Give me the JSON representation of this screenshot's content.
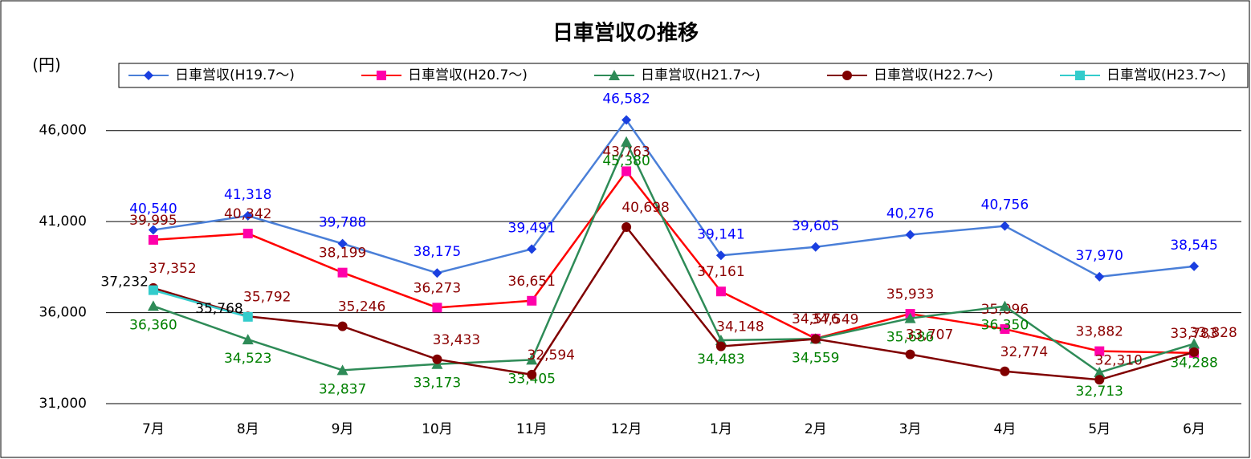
{
  "chart_data": {
    "type": "line",
    "title": "日車営収の推移",
    "y_label": "(円)",
    "categories": [
      "7月",
      "8月",
      "9月",
      "10月",
      "11月",
      "12月",
      "1月",
      "2月",
      "3月",
      "4月",
      "5月",
      "6月"
    ],
    "ylim": [
      31000,
      47000
    ],
    "yticks": [
      {
        "value": 31000,
        "label": "31,000"
      },
      {
        "value": 36000,
        "label": "36,000"
      },
      {
        "value": 41000,
        "label": "41,000"
      },
      {
        "value": 46000,
        "label": "46,000"
      }
    ],
    "grid": true,
    "series": [
      {
        "name": "日車営収(H19.7～)",
        "color": "#4a7fd8",
        "marker_color": "#1a3fe0",
        "label_color": "#0000ff",
        "marker": "diamond",
        "values": [
          40540,
          41318,
          39788,
          38175,
          39491,
          46582,
          39141,
          39605,
          40276,
          40756,
          37970,
          38545
        ],
        "value_labels": [
          "40,540",
          "41,318",
          "39,788",
          "38,175",
          "39,491",
          "46,582",
          "39,141",
          "39,605",
          "40,276",
          "40,756",
          "37,970",
          "38,545"
        ]
      },
      {
        "name": "日車営収(H20.7～)",
        "color": "#ff0000",
        "marker_color": "#ff00aa",
        "label_color": "#8b0000",
        "marker": "square",
        "values": [
          39995,
          40342,
          38199,
          36273,
          36651,
          43763,
          37161,
          34576,
          35933,
          35096,
          33882,
          33783
        ],
        "value_labels": [
          "39,995",
          "40,342",
          "38,199",
          "36,273",
          "36,651",
          "43,763",
          "37,161",
          "34,576",
          "35,933",
          "35,096",
          "33,882",
          "33,783"
        ]
      },
      {
        "name": "日車営収(H21.7～)",
        "color": "#2e8b57",
        "marker_color": "#2e8b57",
        "label_color": "#008000",
        "marker": "triangle",
        "values": [
          36360,
          34523,
          32837,
          33173,
          33405,
          45380,
          34483,
          34559,
          35686,
          36350,
          32713,
          34288
        ],
        "value_labels": [
          "36,360",
          "34,523",
          "32,837",
          "33,173",
          "33,405",
          "45,380",
          "34,483",
          "34,559",
          "35,686",
          "36,350",
          "32,713",
          "34,288"
        ]
      },
      {
        "name": "日車営収(H22.7～)",
        "color": "#800000",
        "marker_color": "#800000",
        "label_color": "#8b0000",
        "marker": "circle",
        "values": [
          37352,
          35792,
          35246,
          33433,
          32594,
          40698,
          34148,
          34549,
          33707,
          32774,
          32310,
          33828
        ],
        "value_labels": [
          "37,352",
          "35,792",
          "35,246",
          "33,433",
          "32,594",
          "40,698",
          "34,148",
          "34,549",
          "33,707",
          "32,774",
          "32,310",
          "33,828"
        ]
      },
      {
        "name": "日車営収(H23.7～)",
        "color": "#33cccc",
        "marker_color": "#33cccc",
        "label_color": "#000000",
        "marker": "square",
        "values": [
          37232,
          35768,
          null,
          null,
          null,
          null,
          null,
          null,
          null,
          null,
          null,
          null
        ],
        "value_labels": [
          "37,232",
          "35,768",
          null,
          null,
          null,
          null,
          null,
          null,
          null,
          null,
          null,
          null
        ]
      }
    ]
  }
}
